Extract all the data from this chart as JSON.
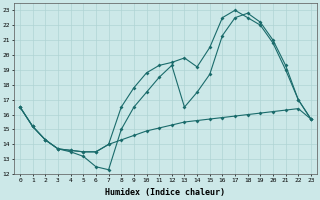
{
  "xlabel": "Humidex (Indice chaleur)",
  "bg_color": "#cce8e8",
  "line_color": "#1a6b6b",
  "xlim": [
    -0.5,
    23.5
  ],
  "ylim": [
    12,
    23.5
  ],
  "xticks": [
    0,
    1,
    2,
    3,
    4,
    5,
    6,
    7,
    8,
    9,
    10,
    11,
    12,
    13,
    14,
    15,
    16,
    17,
    18,
    19,
    20,
    21,
    22,
    23
  ],
  "yticks": [
    12,
    13,
    14,
    15,
    16,
    17,
    18,
    19,
    20,
    21,
    22,
    23
  ],
  "line1_x": [
    0,
    1,
    2,
    3,
    4,
    5,
    6,
    7,
    8,
    9,
    10,
    11,
    12,
    13,
    14,
    15,
    16,
    17,
    18,
    19,
    20,
    21,
    22,
    23
  ],
  "line1_y": [
    16.5,
    15.2,
    14.3,
    13.7,
    13.5,
    13.2,
    12.5,
    12.3,
    15.0,
    16.5,
    17.5,
    18.5,
    19.3,
    16.5,
    17.5,
    18.7,
    21.3,
    22.5,
    22.8,
    22.2,
    21.0,
    19.3,
    17.0,
    15.7
  ],
  "line2_x": [
    0,
    1,
    2,
    3,
    4,
    5,
    6,
    7,
    8,
    9,
    10,
    11,
    12,
    13,
    14,
    15,
    16,
    17,
    18,
    19,
    20,
    21,
    22,
    23
  ],
  "line2_y": [
    16.5,
    15.2,
    14.3,
    13.7,
    13.6,
    13.5,
    13.5,
    14.0,
    14.3,
    14.6,
    14.9,
    15.1,
    15.3,
    15.5,
    15.6,
    15.7,
    15.8,
    15.9,
    16.0,
    16.1,
    16.2,
    16.3,
    16.4,
    15.7
  ],
  "line3_x": [
    0,
    1,
    2,
    3,
    4,
    5,
    6,
    7,
    8,
    9,
    10,
    11,
    12,
    13,
    14,
    15,
    16,
    17,
    18,
    19,
    20,
    21,
    22,
    23
  ],
  "line3_y": [
    16.5,
    15.2,
    14.3,
    13.7,
    13.6,
    13.5,
    13.5,
    14.0,
    16.5,
    17.8,
    18.8,
    19.3,
    19.5,
    19.8,
    19.2,
    20.5,
    22.5,
    23.0,
    22.5,
    22.0,
    20.8,
    19.0,
    17.0,
    15.7
  ]
}
